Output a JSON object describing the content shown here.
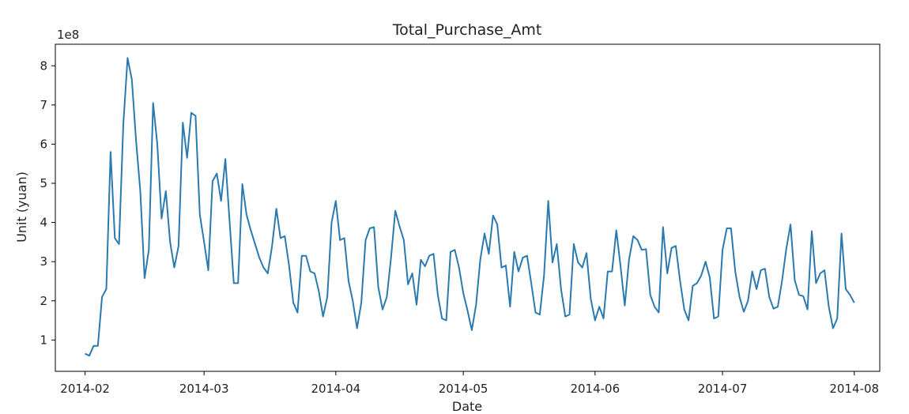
{
  "chart_data": {
    "type": "line",
    "title": "Total_Purchase_Amt",
    "xlabel": "Date",
    "ylabel": "Unit (yuan)",
    "y_scale_label": "1e8",
    "y_multiplier": 100000000,
    "xlim": [
      "2014-01-25",
      "2014-08-07"
    ],
    "ylim": [
      0.2,
      8.55
    ],
    "x_ticks": [
      "2014-02-01",
      "2014-03-01",
      "2014-04-01",
      "2014-05-01",
      "2014-06-01",
      "2014-07-01",
      "2014-08-01"
    ],
    "x_tick_labels": [
      "2014-02",
      "2014-03",
      "2014-04",
      "2014-05",
      "2014-06",
      "2014-07",
      "2014-08"
    ],
    "y_ticks": [
      1,
      2,
      3,
      4,
      5,
      6,
      7,
      8
    ],
    "y_tick_labels": [
      "1",
      "2",
      "3",
      "4",
      "5",
      "6",
      "7",
      "8"
    ],
    "grid": false,
    "line_color": "#2a7ab0",
    "series": [
      {
        "x_start": "2014-02-01",
        "x_step_days": 1,
        "values": [
          0.65,
          0.6,
          0.85,
          0.85,
          2.1,
          2.3,
          5.8,
          3.6,
          3.45,
          6.5,
          8.2,
          7.65,
          6.1,
          4.8,
          2.58,
          3.3,
          7.05,
          6.0,
          4.1,
          4.8,
          3.5,
          2.85,
          3.4,
          6.55,
          5.65,
          6.8,
          6.72,
          4.2,
          3.5,
          2.78,
          5.05,
          5.25,
          4.55,
          5.62,
          4.05,
          2.45,
          2.45,
          4.98,
          4.2,
          3.8,
          3.45,
          3.1,
          2.85,
          2.7,
          3.4,
          4.35,
          3.6,
          3.65,
          2.9,
          1.95,
          1.7,
          3.15,
          3.15,
          2.75,
          2.7,
          2.25,
          1.6,
          2.1,
          4.0,
          4.55,
          3.55,
          3.6,
          2.5,
          2.0,
          1.3,
          1.95,
          3.55,
          3.85,
          3.88,
          2.35,
          1.78,
          2.1,
          3.1,
          4.3,
          3.9,
          3.55,
          2.42,
          2.7,
          1.9,
          3.05,
          2.88,
          3.15,
          3.2,
          2.15,
          1.55,
          1.5,
          3.25,
          3.3,
          2.85,
          2.2,
          1.75,
          1.25,
          1.9,
          3.05,
          3.72,
          3.2,
          4.18,
          3.95,
          2.85,
          2.9,
          1.85,
          3.25,
          2.75,
          3.1,
          3.15,
          2.45,
          1.7,
          1.65,
          2.65,
          4.55,
          2.98,
          3.45,
          2.3,
          1.6,
          1.65,
          3.45,
          2.98,
          2.85,
          3.22,
          2.05,
          1.5,
          1.85,
          1.55,
          2.75,
          2.75,
          3.8,
          2.9,
          1.88,
          3.05,
          3.65,
          3.55,
          3.3,
          3.32,
          2.15,
          1.85,
          1.7,
          3.88,
          2.7,
          3.35,
          3.4,
          2.52,
          1.78,
          1.5,
          2.38,
          2.45,
          2.65,
          3.0,
          2.6,
          1.55,
          1.6,
          3.3,
          3.85,
          3.85,
          2.75,
          2.1,
          1.72,
          2.0,
          2.75,
          2.3,
          2.78,
          2.82,
          2.1,
          1.8,
          1.85,
          2.5,
          3.32,
          3.95,
          2.52,
          2.15,
          2.12,
          1.78,
          3.78,
          2.45,
          2.7,
          2.78,
          1.85,
          1.3,
          1.55,
          3.72,
          2.3,
          2.15,
          1.95
        ]
      }
    ]
  }
}
